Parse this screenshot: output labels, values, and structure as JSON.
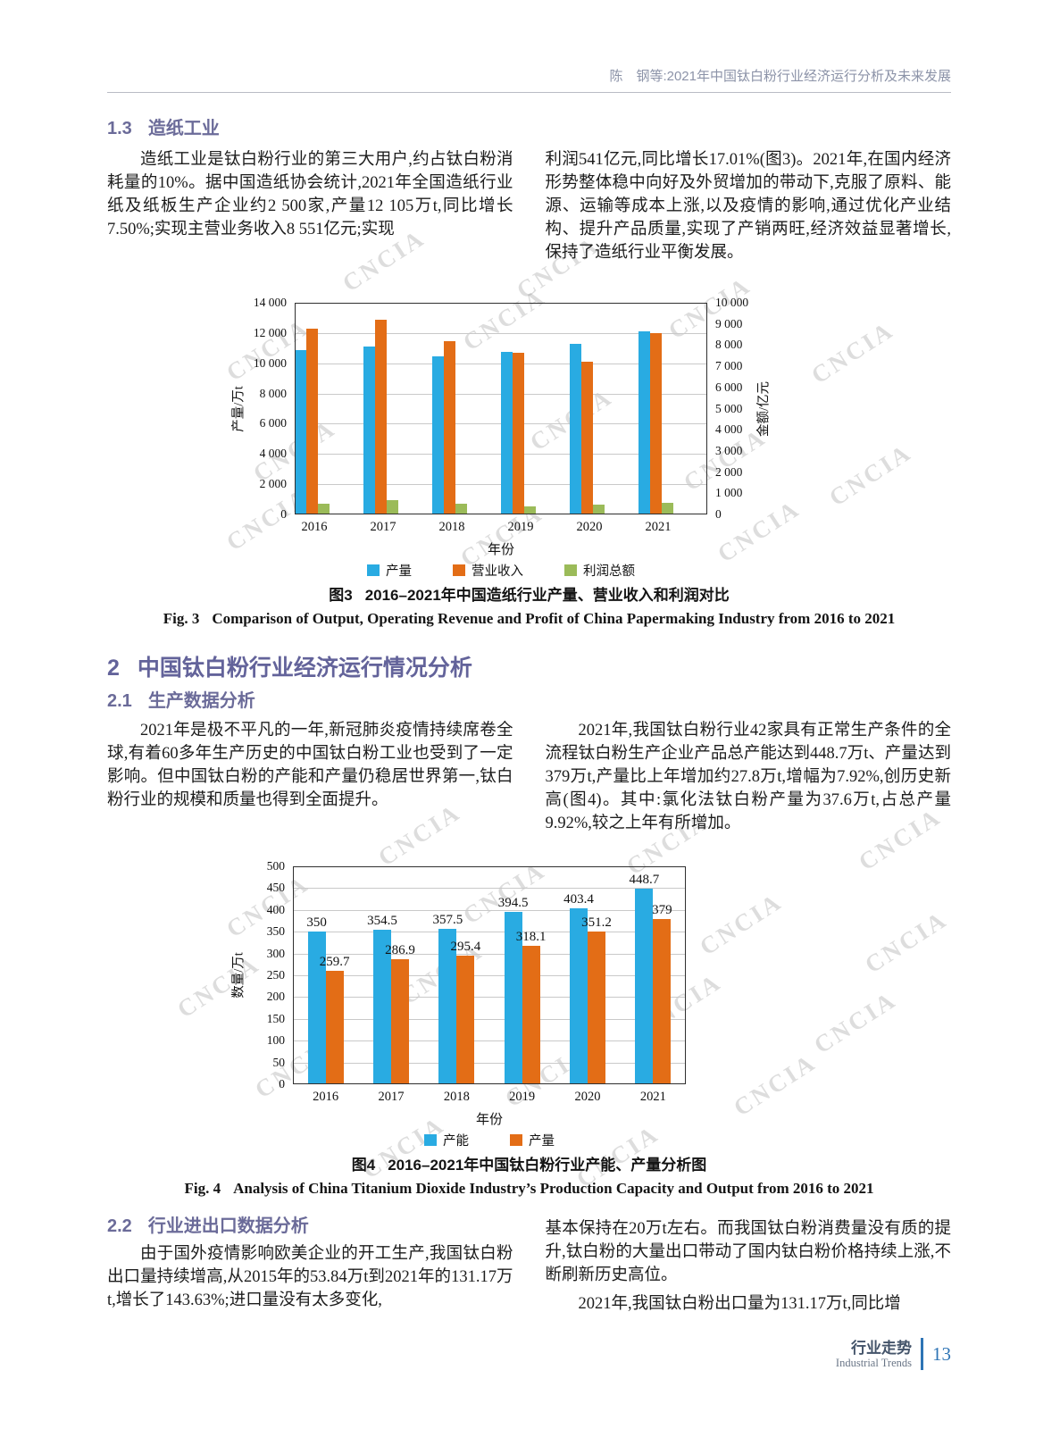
{
  "page": {
    "running_title": "陈　钢等:2021年中国钛白粉行业经济运行分析及未来发展",
    "watermark": "CNCIA",
    "footer": {
      "section_cn": "行业走势",
      "section_en": "Industrial Trends",
      "page_number": "13"
    }
  },
  "sections": {
    "s1_3": {
      "num": "1.3",
      "title": "造纸工业",
      "col_left": "造纸工业是钛白粉行业的第三大用户,约占钛白粉消耗量的10%。据中国造纸协会统计,2021年全国造纸行业纸及纸板生产企业约2 500家,产量12 105万t,同比增长7.50%;实现主营业务收入8 551亿元;实现",
      "col_right": "利润541亿元,同比增长17.01%(图3)。2021年,在国内经济形势整体稳中向好及外贸增加的带动下,克服了原料、能源、运输等成本上涨,以及疫情的影响,通过优化产业结构、提升产品质量,实现了产销两旺,经济效益显著增长,保持了造纸行业平衡发展。"
    },
    "s2": {
      "num": "2",
      "title": "中国钛白粉行业经济运行情况分析"
    },
    "s2_1": {
      "num": "2.1",
      "title": "生产数据分析",
      "col_left": "2021年是极不平凡的一年,新冠肺炎疫情持续席卷全球,有着60多年生产历史的中国钛白粉工业也受到了一定影响。但中国钛白粉的产能和产量仍稳居世界第一,钛白粉行业的规模和质量也得到全面提升。",
      "col_right": "2021年,我国钛白粉行业42家具有正常生产条件的全流程钛白粉生产企业产品总产能达到448.7万t、产量达到379万t,产量比上年增加约27.8万t,增幅为7.92%,创历史新高(图4)。其中:氯化法钛白粉产量为37.6万t,占总产量9.92%,较之上年有所增加。"
    },
    "s2_2": {
      "num": "2.2",
      "title": "行业进出口数据分析",
      "col_left": "由于国外疫情影响欧美企业的开工生产,我国钛白粉出口量持续增高,从2015年的53.84万t到2021年的131.17万t,增长了143.63%;进口量没有太多变化,",
      "col_right_p1": "基本保持在20万t左右。而我国钛白粉消费量没有质的提升,钛白粉的大量出口带动了国内钛白粉价格持续上涨,不断刷新历史高位。",
      "col_right_p2": "2021年,我国钛白粉出口量为131.17万t,同比增"
    }
  },
  "figures": {
    "fig3": {
      "caption_cn_label": "图3",
      "caption_cn_text": "2016–2021年中国造纸行业产量、营业收入和利润对比",
      "caption_en_label": "Fig. 3",
      "caption_en_text": "Comparison of Output, Operating Revenue and Profit of China Papermaking Industry from 2016 to 2021"
    },
    "fig4": {
      "caption_cn_label": "图4",
      "caption_cn_text": "2016–2021年中国钛白粉行业产能、产量分析图",
      "caption_en_label": "Fig. 4",
      "caption_en_text": "Analysis of China Titanium Dioxide Industry’s Production Capacity and Output from 2016 to 2021"
    }
  },
  "chart_data": [
    {
      "id": "fig3",
      "type": "bar",
      "title": "2016–2021年中国造纸行业产量、营业收入和利润对比",
      "categories": [
        "2016",
        "2017",
        "2018",
        "2019",
        "2020",
        "2021"
      ],
      "series": [
        {
          "name": "产量",
          "axis": "left",
          "color": "#29ABE2",
          "values": [
            10855,
            11130,
            10435,
            10765,
            11260,
            12105
          ]
        },
        {
          "name": "营业收入",
          "axis": "right",
          "color": "#E36D16",
          "values": [
            8760,
            9200,
            8180,
            7650,
            7210,
            8551
          ]
        },
        {
          "name": "利润总额",
          "axis": "right",
          "color": "#9BBB59",
          "values": [
            494,
            682,
            519,
            400,
            462,
            541
          ]
        }
      ],
      "xlabel": "年份",
      "ylabel_left": "产量/万t",
      "ylabel_right": "金额/亿元",
      "ylim_left": [
        0,
        14000
      ],
      "ylim_right": [
        0,
        10000
      ],
      "yticks_left": [
        "14 000",
        "12 000",
        "10 000",
        "8 000",
        "6 000",
        "4 000",
        "2 000",
        "0"
      ],
      "yticks_right": [
        "10 000",
        "9 000",
        "8 000",
        "7 000",
        "6 000",
        "5 000",
        "4 000",
        "3 000",
        "2 000",
        "1 000",
        "0"
      ],
      "grid": true,
      "legend_position": "bottom"
    },
    {
      "id": "fig4",
      "type": "bar",
      "title": "2016–2021年中国钛白粉行业产能、产量分析图",
      "categories": [
        "2016",
        "2017",
        "2018",
        "2019",
        "2020",
        "2021"
      ],
      "series": [
        {
          "name": "产能",
          "axis": "left",
          "color": "#29ABE2",
          "values": [
            350,
            354.5,
            357.5,
            394.5,
            403.4,
            448.7
          ],
          "labels": [
            "350",
            "354.5",
            "357.5",
            "394.5",
            "403.4",
            "448.7"
          ]
        },
        {
          "name": "产量",
          "axis": "left",
          "color": "#E36D16",
          "values": [
            259.7,
            286.9,
            295.4,
            318.1,
            351.2,
            379
          ],
          "labels": [
            "259.7",
            "286.9",
            "295.4",
            "318.1",
            "351.2",
            "379"
          ]
        }
      ],
      "xlabel": "年份",
      "ylabel_left": "数量/万t",
      "ylim_left": [
        0,
        500
      ],
      "yticks_left": [
        "500",
        "450",
        "400",
        "350",
        "300",
        "250",
        "200",
        "150",
        "100",
        "50",
        "0"
      ],
      "grid": true,
      "legend_position": "bottom"
    }
  ]
}
